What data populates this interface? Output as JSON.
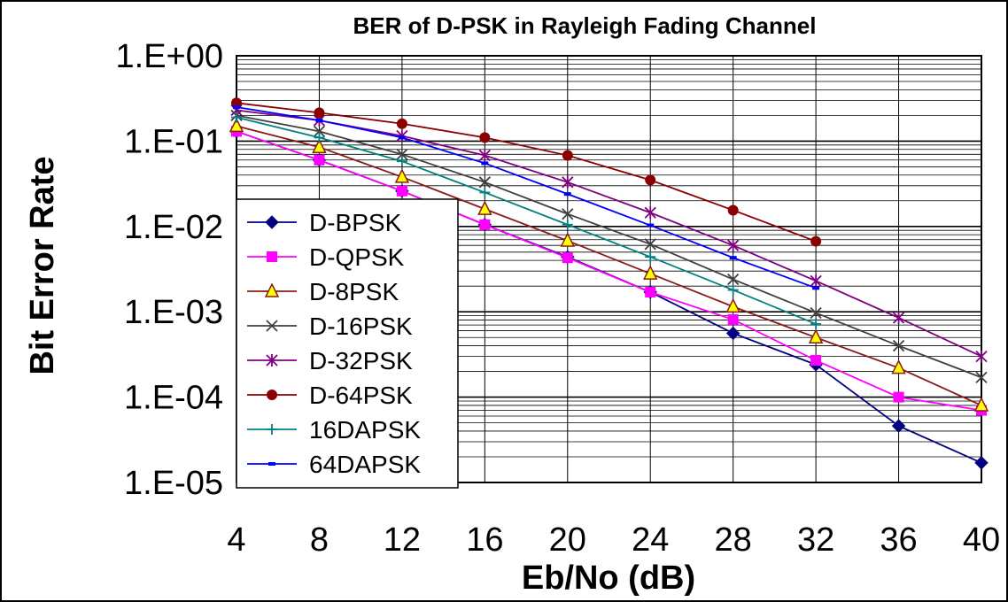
{
  "chart_data": {
    "type": "line",
    "title": "BER of D-PSK in Rayleigh Fading Channel",
    "xlabel": "Eb/No (dB)",
    "ylabel": "Bit Error Rate",
    "x": [
      4,
      8,
      12,
      16,
      20,
      24,
      28,
      32,
      36,
      40
    ],
    "xticks": [
      "4",
      "8",
      "12",
      "16",
      "20",
      "24",
      "28",
      "32",
      "36",
      "40"
    ],
    "yscale": "log",
    "ylim": [
      1e-05,
      1
    ],
    "yticks": [
      "1.E+00",
      "1.E-01",
      "1.E-02",
      "1.E-03",
      "1.E-04",
      "1.E-05"
    ],
    "grid": true,
    "legend_position": "left",
    "series": [
      {
        "name": "D-BPSK",
        "color": "#000080",
        "marker": "diamond",
        "values": [
          0.13,
          0.06,
          0.026,
          0.0105,
          0.0044,
          0.0017,
          0.00056,
          0.00024,
          4.6e-05,
          1.7e-05
        ]
      },
      {
        "name": "D-QPSK",
        "color": "#ff00ff",
        "marker": "square",
        "values": [
          0.13,
          0.06,
          0.026,
          0.0105,
          0.0043,
          0.0017,
          0.00081,
          0.00027,
          0.0001,
          7e-05
        ]
      },
      {
        "name": "D-8PSK",
        "color": "#8b1a1a",
        "marker": "triangle",
        "values": [
          0.15,
          0.085,
          0.038,
          0.016,
          0.0068,
          0.0028,
          0.00115,
          0.0005,
          0.00022,
          8e-05
        ]
      },
      {
        "name": "D-16PSK",
        "color": "#404040",
        "marker": "x",
        "values": [
          0.2,
          0.13,
          0.07,
          0.033,
          0.014,
          0.0062,
          0.0024,
          0.00097,
          0.0004,
          0.00017
        ]
      },
      {
        "name": "D-32PSK",
        "color": "#800080",
        "marker": "star",
        "values": [
          0.23,
          0.175,
          0.115,
          0.068,
          0.033,
          0.0145,
          0.006,
          0.0023,
          0.00085,
          0.0003
        ]
      },
      {
        "name": "D-64PSK",
        "color": "#8b0000",
        "marker": "circle",
        "values": [
          0.28,
          0.215,
          0.16,
          0.11,
          0.068,
          0.035,
          0.0155,
          0.0067,
          null,
          null
        ]
      },
      {
        "name": "16DAPSK",
        "color": "#008080",
        "marker": "plus",
        "values": [
          0.19,
          0.11,
          0.058,
          0.025,
          0.0105,
          0.0044,
          0.0018,
          0.00072,
          null,
          null
        ]
      },
      {
        "name": "64DAPSK",
        "color": "#0000ff",
        "marker": "dash",
        "values": [
          0.25,
          0.175,
          0.11,
          0.055,
          0.024,
          0.0103,
          0.0043,
          0.0019,
          null,
          null
        ]
      }
    ]
  }
}
